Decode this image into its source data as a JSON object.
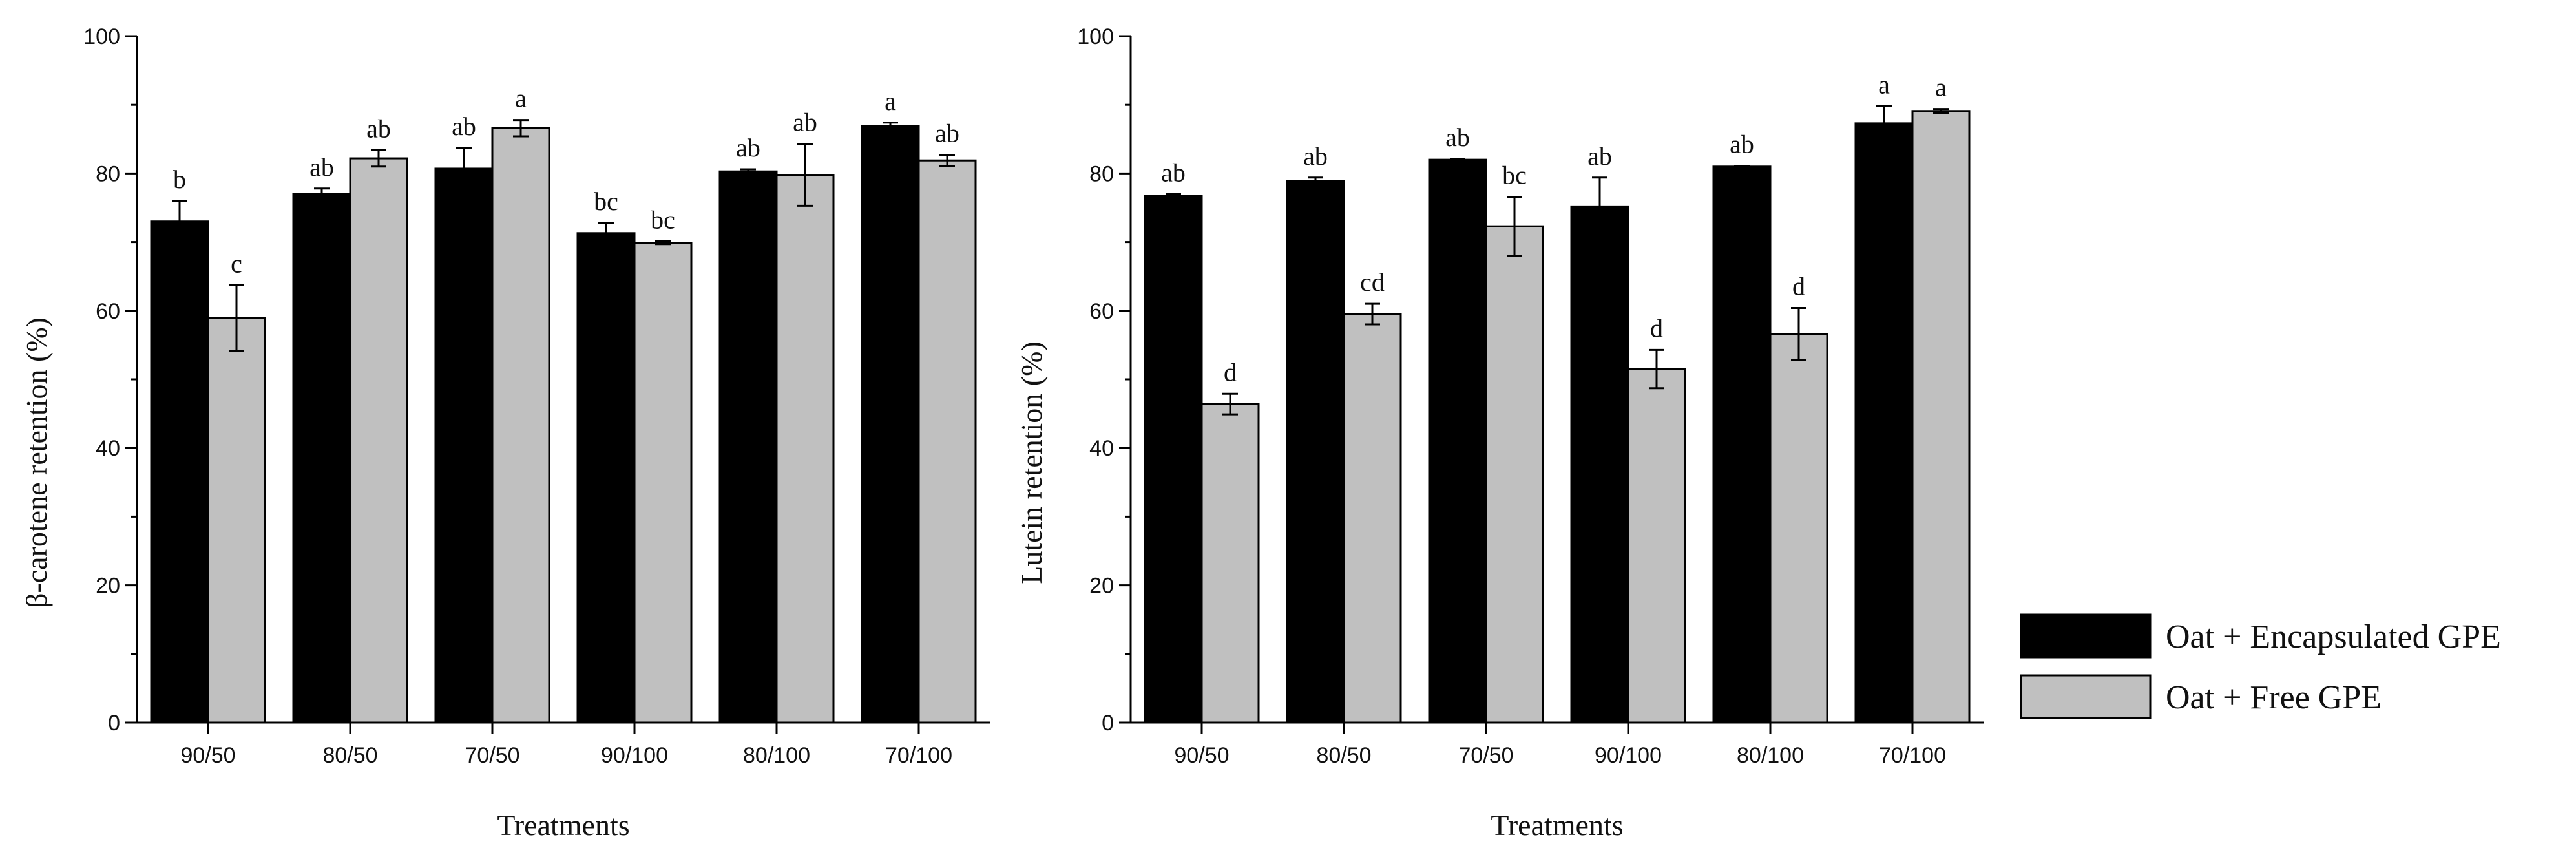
{
  "chart_data": [
    {
      "type": "bar",
      "title": "",
      "xlabel": "Treatments",
      "ylabel": "β-carotene retention (%)",
      "ylim": [
        0,
        100
      ],
      "yticks": [
        0,
        20,
        40,
        60,
        80,
        100
      ],
      "categories": [
        "90/50",
        "80/50",
        "70/50",
        "90/100",
        "80/100",
        "70/100"
      ],
      "series": [
        {
          "name": "Oat + Encapsulated GPE",
          "values": [
            73.0,
            77.0,
            80.7,
            71.3,
            80.3,
            86.9
          ],
          "errors": [
            3.0,
            0.8,
            3.0,
            1.5,
            0.3,
            0.5
          ],
          "labels": [
            "b",
            "ab",
            "ab",
            "bc",
            "ab",
            "a"
          ]
        },
        {
          "name": "Oat + Free GPE",
          "values": [
            58.9,
            82.2,
            86.6,
            69.9,
            79.8,
            81.9
          ],
          "errors": [
            4.8,
            1.2,
            1.2,
            0.2,
            4.5,
            0.8
          ],
          "labels": [
            "c",
            "ab",
            "a",
            "bc",
            "ab",
            "ab"
          ]
        }
      ]
    },
    {
      "type": "bar",
      "title": "",
      "xlabel": "Treatments",
      "ylabel": "Lutein retention (%)",
      "ylim": [
        0,
        100
      ],
      "yticks": [
        0,
        20,
        40,
        60,
        80,
        100
      ],
      "categories": [
        "90/50",
        "80/50",
        "70/50",
        "90/100",
        "80/100",
        "70/100"
      ],
      "series": [
        {
          "name": "Oat + Encapsulated GPE",
          "values": [
            76.7,
            78.9,
            82.0,
            75.2,
            81.0,
            87.3
          ],
          "errors": [
            0.3,
            0.5,
            0.1,
            4.2,
            0.1,
            2.5
          ],
          "labels": [
            "ab",
            "ab",
            "ab",
            "ab",
            "ab",
            "a"
          ]
        },
        {
          "name": "Oat + Free GPE",
          "values": [
            46.4,
            59.5,
            72.3,
            51.5,
            56.6,
            89.1
          ],
          "errors": [
            1.5,
            1.5,
            4.3,
            2.8,
            3.8,
            0.3
          ],
          "labels": [
            "d",
            "cd",
            "bc",
            "d",
            "d",
            "a"
          ]
        }
      ]
    }
  ],
  "legend": {
    "items": [
      {
        "label": "Oat + Encapsulated GPE",
        "color": "#000000"
      },
      {
        "label": "Oat + Free GPE",
        "color": "#c0c0c0"
      }
    ]
  }
}
